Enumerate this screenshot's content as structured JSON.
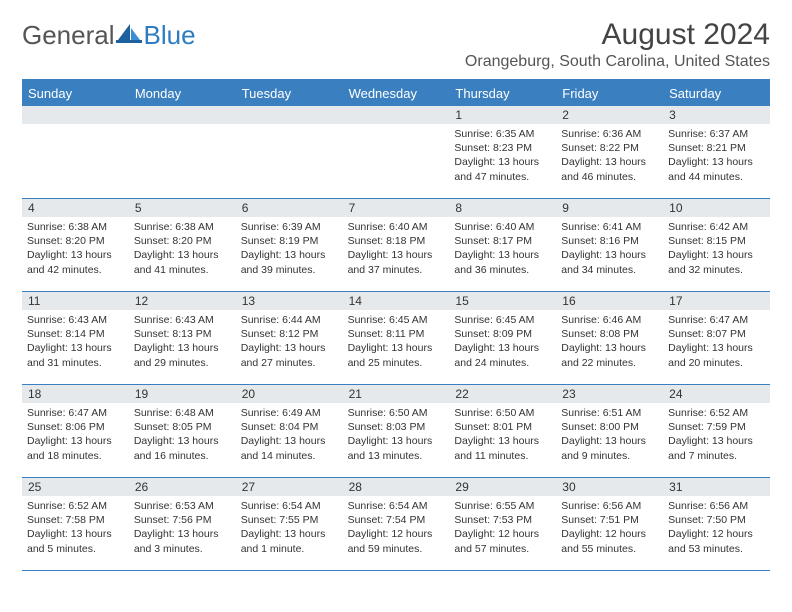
{
  "brand": {
    "general": "General",
    "blue": "Blue"
  },
  "title": "August 2024",
  "location": "Orangeburg, South Carolina, United States",
  "colors": {
    "header_bg": "#3a7fbf",
    "header_text": "#ffffff",
    "daynum_bg": "#e5e9ec",
    "border": "#3a7fbf",
    "page_bg": "#ffffff",
    "text": "#333333",
    "title_text": "#444444",
    "location_text": "#555555",
    "logo_gray": "#555555",
    "logo_blue": "#2d7cc0"
  },
  "typography": {
    "month_title_fontsize": 30,
    "location_fontsize": 16,
    "dayheader_fontsize": 13,
    "daynum_fontsize": 12,
    "body_fontsize": 10.5,
    "logo_fontsize": 26
  },
  "layout": {
    "columns": 7,
    "rows": 5,
    "cell_min_height": 92
  },
  "day_headers": [
    "Sunday",
    "Monday",
    "Tuesday",
    "Wednesday",
    "Thursday",
    "Friday",
    "Saturday"
  ],
  "weeks": [
    [
      {
        "n": "",
        "sr": "",
        "ss": "",
        "dl": ""
      },
      {
        "n": "",
        "sr": "",
        "ss": "",
        "dl": ""
      },
      {
        "n": "",
        "sr": "",
        "ss": "",
        "dl": ""
      },
      {
        "n": "",
        "sr": "",
        "ss": "",
        "dl": ""
      },
      {
        "n": "1",
        "sr": "Sunrise: 6:35 AM",
        "ss": "Sunset: 8:23 PM",
        "dl": "Daylight: 13 hours and 47 minutes."
      },
      {
        "n": "2",
        "sr": "Sunrise: 6:36 AM",
        "ss": "Sunset: 8:22 PM",
        "dl": "Daylight: 13 hours and 46 minutes."
      },
      {
        "n": "3",
        "sr": "Sunrise: 6:37 AM",
        "ss": "Sunset: 8:21 PM",
        "dl": "Daylight: 13 hours and 44 minutes."
      }
    ],
    [
      {
        "n": "4",
        "sr": "Sunrise: 6:38 AM",
        "ss": "Sunset: 8:20 PM",
        "dl": "Daylight: 13 hours and 42 minutes."
      },
      {
        "n": "5",
        "sr": "Sunrise: 6:38 AM",
        "ss": "Sunset: 8:20 PM",
        "dl": "Daylight: 13 hours and 41 minutes."
      },
      {
        "n": "6",
        "sr": "Sunrise: 6:39 AM",
        "ss": "Sunset: 8:19 PM",
        "dl": "Daylight: 13 hours and 39 minutes."
      },
      {
        "n": "7",
        "sr": "Sunrise: 6:40 AM",
        "ss": "Sunset: 8:18 PM",
        "dl": "Daylight: 13 hours and 37 minutes."
      },
      {
        "n": "8",
        "sr": "Sunrise: 6:40 AM",
        "ss": "Sunset: 8:17 PM",
        "dl": "Daylight: 13 hours and 36 minutes."
      },
      {
        "n": "9",
        "sr": "Sunrise: 6:41 AM",
        "ss": "Sunset: 8:16 PM",
        "dl": "Daylight: 13 hours and 34 minutes."
      },
      {
        "n": "10",
        "sr": "Sunrise: 6:42 AM",
        "ss": "Sunset: 8:15 PM",
        "dl": "Daylight: 13 hours and 32 minutes."
      }
    ],
    [
      {
        "n": "11",
        "sr": "Sunrise: 6:43 AM",
        "ss": "Sunset: 8:14 PM",
        "dl": "Daylight: 13 hours and 31 minutes."
      },
      {
        "n": "12",
        "sr": "Sunrise: 6:43 AM",
        "ss": "Sunset: 8:13 PM",
        "dl": "Daylight: 13 hours and 29 minutes."
      },
      {
        "n": "13",
        "sr": "Sunrise: 6:44 AM",
        "ss": "Sunset: 8:12 PM",
        "dl": "Daylight: 13 hours and 27 minutes."
      },
      {
        "n": "14",
        "sr": "Sunrise: 6:45 AM",
        "ss": "Sunset: 8:11 PM",
        "dl": "Daylight: 13 hours and 25 minutes."
      },
      {
        "n": "15",
        "sr": "Sunrise: 6:45 AM",
        "ss": "Sunset: 8:09 PM",
        "dl": "Daylight: 13 hours and 24 minutes."
      },
      {
        "n": "16",
        "sr": "Sunrise: 6:46 AM",
        "ss": "Sunset: 8:08 PM",
        "dl": "Daylight: 13 hours and 22 minutes."
      },
      {
        "n": "17",
        "sr": "Sunrise: 6:47 AM",
        "ss": "Sunset: 8:07 PM",
        "dl": "Daylight: 13 hours and 20 minutes."
      }
    ],
    [
      {
        "n": "18",
        "sr": "Sunrise: 6:47 AM",
        "ss": "Sunset: 8:06 PM",
        "dl": "Daylight: 13 hours and 18 minutes."
      },
      {
        "n": "19",
        "sr": "Sunrise: 6:48 AM",
        "ss": "Sunset: 8:05 PM",
        "dl": "Daylight: 13 hours and 16 minutes."
      },
      {
        "n": "20",
        "sr": "Sunrise: 6:49 AM",
        "ss": "Sunset: 8:04 PM",
        "dl": "Daylight: 13 hours and 14 minutes."
      },
      {
        "n": "21",
        "sr": "Sunrise: 6:50 AM",
        "ss": "Sunset: 8:03 PM",
        "dl": "Daylight: 13 hours and 13 minutes."
      },
      {
        "n": "22",
        "sr": "Sunrise: 6:50 AM",
        "ss": "Sunset: 8:01 PM",
        "dl": "Daylight: 13 hours and 11 minutes."
      },
      {
        "n": "23",
        "sr": "Sunrise: 6:51 AM",
        "ss": "Sunset: 8:00 PM",
        "dl": "Daylight: 13 hours and 9 minutes."
      },
      {
        "n": "24",
        "sr": "Sunrise: 6:52 AM",
        "ss": "Sunset: 7:59 PM",
        "dl": "Daylight: 13 hours and 7 minutes."
      }
    ],
    [
      {
        "n": "25",
        "sr": "Sunrise: 6:52 AM",
        "ss": "Sunset: 7:58 PM",
        "dl": "Daylight: 13 hours and 5 minutes."
      },
      {
        "n": "26",
        "sr": "Sunrise: 6:53 AM",
        "ss": "Sunset: 7:56 PM",
        "dl": "Daylight: 13 hours and 3 minutes."
      },
      {
        "n": "27",
        "sr": "Sunrise: 6:54 AM",
        "ss": "Sunset: 7:55 PM",
        "dl": "Daylight: 13 hours and 1 minute."
      },
      {
        "n": "28",
        "sr": "Sunrise: 6:54 AM",
        "ss": "Sunset: 7:54 PM",
        "dl": "Daylight: 12 hours and 59 minutes."
      },
      {
        "n": "29",
        "sr": "Sunrise: 6:55 AM",
        "ss": "Sunset: 7:53 PM",
        "dl": "Daylight: 12 hours and 57 minutes."
      },
      {
        "n": "30",
        "sr": "Sunrise: 6:56 AM",
        "ss": "Sunset: 7:51 PM",
        "dl": "Daylight: 12 hours and 55 minutes."
      },
      {
        "n": "31",
        "sr": "Sunrise: 6:56 AM",
        "ss": "Sunset: 7:50 PM",
        "dl": "Daylight: 12 hours and 53 minutes."
      }
    ]
  ]
}
